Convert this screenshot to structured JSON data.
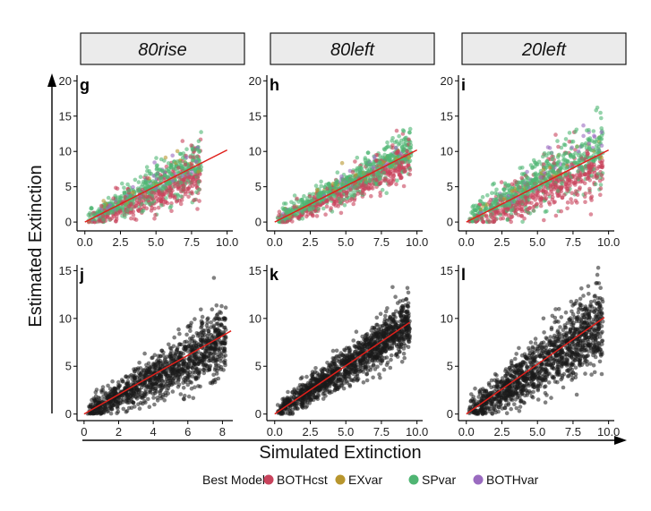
{
  "chart_data": {
    "type": "scatter",
    "ylabel": "Estimated Extinction",
    "xlabel": "Simulated Extinction",
    "legend": {
      "title": "Best Model",
      "placement": "bottom",
      "entries": [
        {
          "name": "BOTHcst",
          "color": "#c8435c"
        },
        {
          "name": "EXvar",
          "color": "#b8962e"
        },
        {
          "name": "SPvar",
          "color": "#4fb573"
        },
        {
          "name": "BOTHvar",
          "color": "#9a6bc0"
        }
      ]
    },
    "regression_line_color": "#e0201b",
    "panels": [
      {
        "letter": "g",
        "strip": "80rise",
        "row": 0,
        "col": 0,
        "colored": true,
        "xlim": [
          -0.3,
          10.4
        ],
        "ylim": [
          -1,
          20.8
        ],
        "xticks": [
          0,
          2.5,
          5,
          7.5,
          10
        ],
        "xtick_labels": [
          "0.0",
          "2.5",
          "5.0",
          "7.5",
          "10.0"
        ],
        "yticks": [
          0,
          5,
          10,
          15,
          20
        ],
        "ytick_labels": [
          "0",
          "5",
          "10",
          "15",
          "20"
        ],
        "line": [
          [
            0,
            0
          ],
          [
            10,
            10.2
          ]
        ],
        "cloud": {
          "n": 900,
          "xmin": 0.2,
          "xmax": 8.2,
          "slope": 0.95,
          "spread": 1.9
        }
      },
      {
        "letter": "h",
        "strip": "80left",
        "row": 0,
        "col": 1,
        "colored": true,
        "xlim": [
          -0.3,
          10.4
        ],
        "ylim": [
          -1,
          20.8
        ],
        "xticks": [
          0,
          2.5,
          5,
          7.5,
          10
        ],
        "xtick_labels": [
          "0.0",
          "2.5",
          "5.0",
          "7.5",
          "10.0"
        ],
        "yticks": [
          0,
          5,
          10,
          15,
          20
        ],
        "ytick_labels": [
          "0",
          "5",
          "10",
          "15",
          "20"
        ],
        "line": [
          [
            0,
            0
          ],
          [
            10,
            10.2
          ]
        ],
        "cloud": {
          "n": 1100,
          "xmin": 0.2,
          "xmax": 9.6,
          "slope": 1.0,
          "spread": 1.5
        }
      },
      {
        "letter": "i",
        "strip": "20left",
        "row": 0,
        "col": 2,
        "colored": true,
        "xlim": [
          -0.3,
          10.4
        ],
        "ylim": [
          -1,
          20.8
        ],
        "xticks": [
          0,
          2.5,
          5,
          7.5,
          10
        ],
        "xtick_labels": [
          "0.0",
          "2.5",
          "5.0",
          "7.5",
          "10.0"
        ],
        "yticks": [
          0,
          5,
          10,
          15,
          20
        ],
        "ytick_labels": [
          "0",
          "5",
          "10",
          "15",
          "20"
        ],
        "line": [
          [
            0,
            0
          ],
          [
            10,
            10.2
          ]
        ],
        "cloud": {
          "n": 1100,
          "xmin": 0.2,
          "xmax": 9.6,
          "slope": 1.0,
          "spread": 2.4
        }
      },
      {
        "letter": "j",
        "row": 1,
        "col": 0,
        "colored": false,
        "xlim": [
          -0.2,
          8.6
        ],
        "ylim": [
          -0.5,
          15.6
        ],
        "xticks": [
          0,
          2,
          4,
          6,
          8
        ],
        "xtick_labels": [
          "0",
          "2",
          "4",
          "6",
          "8"
        ],
        "yticks": [
          0,
          5,
          10,
          15
        ],
        "ytick_labels": [
          "0",
          "5",
          "10",
          "15"
        ],
        "line": [
          [
            0,
            0
          ],
          [
            8.5,
            8.7
          ]
        ],
        "cloud": {
          "n": 1200,
          "xmin": 0.2,
          "xmax": 8.2,
          "slope": 0.95,
          "spread": 1.6
        }
      },
      {
        "letter": "k",
        "row": 1,
        "col": 1,
        "colored": false,
        "xlim": [
          -0.3,
          10.4
        ],
        "ylim": [
          -0.5,
          15.6
        ],
        "xticks": [
          0,
          2.5,
          5,
          7.5,
          10
        ],
        "xtick_labels": [
          "0.0",
          "2.5",
          "5.0",
          "7.5",
          "10.0"
        ],
        "yticks": [
          0,
          5,
          10,
          15
        ],
        "ytick_labels": [
          "0",
          "5",
          "10",
          "15"
        ],
        "line": [
          [
            0,
            0
          ],
          [
            9.5,
            9.6
          ]
        ],
        "cloud": {
          "n": 1300,
          "xmin": 0.2,
          "xmax": 9.5,
          "slope": 1.0,
          "spread": 1.3
        }
      },
      {
        "letter": "l",
        "row": 1,
        "col": 2,
        "colored": false,
        "xlim": [
          -0.3,
          10.4
        ],
        "ylim": [
          -0.5,
          15.6
        ],
        "xticks": [
          0,
          2.5,
          5,
          7.5,
          10
        ],
        "xtick_labels": [
          "0.0",
          "2.5",
          "5.0",
          "7.5",
          "10.0"
        ],
        "yticks": [
          0,
          5,
          10,
          15
        ],
        "ytick_labels": [
          "0",
          "5",
          "10",
          "15"
        ],
        "line": [
          [
            0,
            0
          ],
          [
            9.7,
            10.1
          ]
        ],
        "cloud": {
          "n": 1300,
          "xmin": 0.2,
          "xmax": 9.6,
          "slope": 0.98,
          "spread": 1.9
        }
      }
    ]
  }
}
